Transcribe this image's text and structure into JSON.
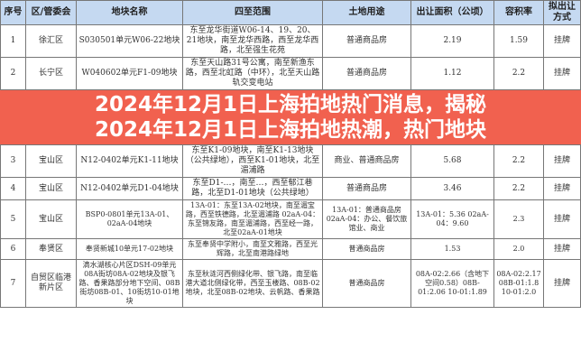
{
  "headers": [
    "序号",
    "区/管委会",
    "地块名称",
    "四至范围",
    "土地用途",
    "出让面积（公顷）",
    "容积率",
    "拟出让方式"
  ],
  "rows": [
    [
      "1",
      "徐汇区",
      "S030501单元W06-22地块",
      "东至龙华街道W06-14、19、20、21地块，南至龙华西路，西至龙华西路，北至强生花苑",
      "普通商品房",
      "2.19",
      "1.59",
      "挂牌"
    ],
    [
      "2",
      "长宁区",
      "W040602单元F1-09地块",
      "东至天山路31号公寓，南至新渔东路，西至北虹路（中环），北至天山路轨交变电站",
      "普通商品房",
      "1.12",
      "2.2",
      "挂牌"
    ],
    [
      "3",
      "宝山区",
      "N12-0402单元K1-11地块",
      "东至K1-09地块，南至K1-13地块（公共绿地），西至K1-01地块，北至湄浦路",
      "商业、普通商品房",
      "5.68",
      "2.2",
      "挂牌"
    ],
    [
      "4",
      "宝山区",
      "N12-0402单元D1-04地块",
      "东至D1-…，南至…，西至郁江巷路，北至D1-01地块（公共绿地）",
      "普通商品房",
      "3.46",
      "2.2",
      "挂牌"
    ],
    [
      "5",
      "宝山区",
      "BSP0-0801单元13A-01、02aA-04地块",
      "13A-01：东至13A-02地块，南至湄宝路，西至铁德路，北至湄浦路 02aA-04：东至锦友路，南至湄浦路，西至经一路，北至02aA-01地块",
      "13A-01：普通商品房 02aA-04：办公、餐饮旅馆业、商业",
      "13A-01：5.36 02aA-04：9.60",
      "2.3",
      "挂牌"
    ],
    [
      "6",
      "奉贤区",
      "奉贤新城10单元17-02地块",
      "东至奉贤中学附小，南至文雅路，西至光辉路，北至南港路绿地",
      "普通商品房",
      "1.53",
      "2.0",
      "挂牌"
    ],
    [
      "7",
      "自贸区临港新片区",
      "滴水湖核心片区DSH-09单元08A街坊08A-02地块及银飞路、香果路部分地下空间、08B街坊08B-01、10街坊10-01地块",
      "东至秋涟河西侧绿化带、银飞路，南至临港大道北侧绿化带，西至玉楼路、08B-02地块，北至08B-02地块、云帆路、香果路",
      "普通商品房",
      "08A-02:2.66（含地下空间0.58）08B-01:2.06 10-01:1.89",
      "08A-02:2.17 08B-01:1.8 10-01:2.0",
      "挂牌"
    ]
  ],
  "banner": {
    "line1": "2024年12月1日上海拍地热门消息，揭秘",
    "line2": "2024年12月1日上海拍地热潮，热门地块"
  }
}
